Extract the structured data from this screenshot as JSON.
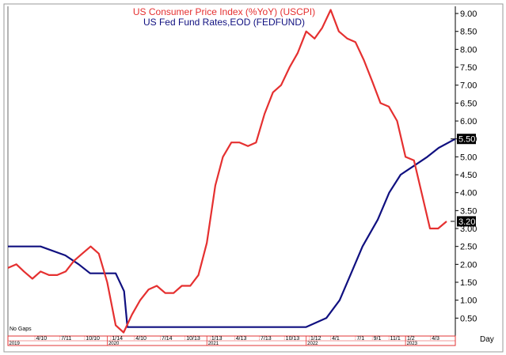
{
  "chart_data": {
    "type": "line",
    "legend": {
      "cpi": "US  Consumer  Price  Index  (%YoY)  (USCPI)",
      "fed": "US  Fed  Fund  Rates,EOD  (FEDFUND)"
    },
    "colors": {
      "cpi": "#e53030",
      "fed": "#101080",
      "axis": "#000000",
      "gridline": "#e23434"
    },
    "ylim": [
      0,
      9.2
    ],
    "yticks": [
      "0.50",
      "1.00",
      "1.50",
      "2.00",
      "2.50",
      "3.00",
      "3.50",
      "4.00",
      "4.50",
      "5.00",
      "5.50",
      "6.00",
      "6.50",
      "7.00",
      "7.50",
      "8.00",
      "8.50",
      "9.00"
    ],
    "xaxis_label": "Day",
    "xlim": [
      "2019-01-01",
      "2023-07-03"
    ],
    "x_ticks": [
      {
        "label": "4/10",
        "date": "2019-04-10"
      },
      {
        "label": "7/11",
        "date": "2019-07-11"
      },
      {
        "label": "10/10",
        "date": "2019-10-10"
      },
      {
        "label": "1/14",
        "date": "2020-01-14"
      },
      {
        "label": "4/10",
        "date": "2020-04-10"
      },
      {
        "label": "7/14",
        "date": "2020-07-14"
      },
      {
        "label": "10/13",
        "date": "2020-10-13"
      },
      {
        "label": "1/13",
        "date": "2021-01-13"
      },
      {
        "label": "4/13",
        "date": "2021-04-13"
      },
      {
        "label": "7/13",
        "date": "2021-07-13"
      },
      {
        "label": "10/13",
        "date": "2021-10-13"
      },
      {
        "label": "1/12",
        "date": "2022-01-12"
      },
      {
        "label": "4/1",
        "date": "2022-04-01"
      },
      {
        "label": "7/1",
        "date": "2022-07-01"
      },
      {
        "label": "9/1",
        "date": "2022-09-01"
      },
      {
        "label": "11/1",
        "date": "2022-11-01"
      },
      {
        "label": "1/2",
        "date": "2023-01-02"
      },
      {
        "label": "4/3",
        "date": "2023-04-03"
      }
    ],
    "years": [
      {
        "label": "2019",
        "date": "2019-01-01"
      },
      {
        "label": "2020",
        "date": "2020-01-01"
      },
      {
        "label": "2021",
        "date": "2021-01-01"
      },
      {
        "label": "2022",
        "date": "2022-01-01"
      },
      {
        "label": "2023",
        "date": "2023-01-01"
      }
    ],
    "no_gaps_label": "No  Gaps",
    "last_values": {
      "cpi": "3.20",
      "fed": "5.50"
    },
    "series": [
      {
        "key": "cpi",
        "x": [
          "2019-01-01",
          "2019-02-01",
          "2019-03-01",
          "2019-04-01",
          "2019-05-01",
          "2019-06-01",
          "2019-07-01",
          "2019-08-01",
          "2019-09-01",
          "2019-10-01",
          "2019-11-01",
          "2019-12-01",
          "2020-01-01",
          "2020-02-01",
          "2020-03-01",
          "2020-04-01",
          "2020-05-01",
          "2020-06-01",
          "2020-07-01",
          "2020-08-01",
          "2020-09-01",
          "2020-10-01",
          "2020-11-01",
          "2020-12-01",
          "2021-01-01",
          "2021-02-01",
          "2021-03-01",
          "2021-04-01",
          "2021-05-01",
          "2021-06-01",
          "2021-07-01",
          "2021-08-01",
          "2021-09-01",
          "2021-10-01",
          "2021-11-01",
          "2021-12-01",
          "2022-01-01",
          "2022-02-01",
          "2022-03-01",
          "2022-04-01",
          "2022-05-01",
          "2022-06-01",
          "2022-07-01",
          "2022-08-01",
          "2022-09-01",
          "2022-10-01",
          "2022-11-01",
          "2022-12-01",
          "2023-01-01",
          "2023-02-01",
          "2023-03-01",
          "2023-04-01",
          "2023-05-01",
          "2023-06-01"
        ],
        "values": [
          1.9,
          2.0,
          1.8,
          1.6,
          1.8,
          1.7,
          1.7,
          1.8,
          2.1,
          2.3,
          2.5,
          2.3,
          1.5,
          0.3,
          0.1,
          0.6,
          1.0,
          1.3,
          1.4,
          1.2,
          1.2,
          1.4,
          1.4,
          1.7,
          2.6,
          4.2,
          5.0,
          5.4,
          5.4,
          5.3,
          5.4,
          6.2,
          6.8,
          7.0,
          7.5,
          7.9,
          8.5,
          8.3,
          8.6,
          9.1,
          8.5,
          8.3,
          8.2,
          7.7,
          7.1,
          6.5,
          6.4,
          6.0,
          5.0,
          4.9,
          4.0,
          3.0,
          3.0,
          3.2
        ]
      },
      {
        "key": "fed",
        "x": [
          "2019-01-01",
          "2019-05-01",
          "2019-07-31",
          "2019-09-18",
          "2019-10-30",
          "2020-02-01",
          "2020-03-03",
          "2020-03-15",
          "2021-01-01",
          "2021-12-31",
          "2022-03-16",
          "2022-05-04",
          "2022-06-15",
          "2022-07-27",
          "2022-09-21",
          "2022-11-02",
          "2022-12-14",
          "2023-02-01",
          "2023-03-22",
          "2023-05-03",
          "2023-07-03"
        ],
        "values": [
          2.5,
          2.5,
          2.25,
          2.0,
          1.75,
          1.75,
          1.25,
          0.25,
          0.25,
          0.25,
          0.5,
          1.0,
          1.75,
          2.5,
          3.25,
          4.0,
          4.5,
          4.75,
          5.0,
          5.25,
          5.5
        ]
      }
    ]
  }
}
